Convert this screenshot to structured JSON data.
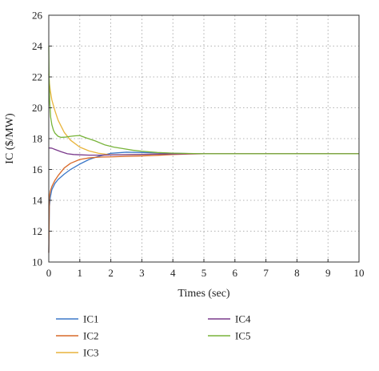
{
  "chart_data": {
    "type": "line",
    "xlabel": "Times (sec)",
    "ylabel": "IC ($/MW)",
    "xlim": [
      0,
      10
    ],
    "ylim": [
      10,
      26
    ],
    "xticks": [
      0,
      1,
      2,
      3,
      4,
      5,
      6,
      7,
      8,
      9,
      10
    ],
    "yticks": [
      10,
      12,
      14,
      16,
      18,
      20,
      22,
      24,
      26
    ],
    "grid": true,
    "legend_position": "bottom",
    "series": [
      {
        "name": "IC1",
        "color": "#3c78c8",
        "x": [
          0,
          0.02,
          0.05,
          0.1,
          0.2,
          0.3,
          0.5,
          0.7,
          1.0,
          1.3,
          1.6,
          2.0,
          2.5,
          3.0,
          3.5,
          4.0,
          4.5,
          5.0,
          6.0,
          7.0,
          8.0,
          9.0,
          10.0
        ],
        "y": [
          10.6,
          13.6,
          14.2,
          14.7,
          15.1,
          15.35,
          15.7,
          16.0,
          16.35,
          16.65,
          16.85,
          17.05,
          17.12,
          17.1,
          17.08,
          17.05,
          17.03,
          17.02,
          17.02,
          17.02,
          17.02,
          17.02,
          17.02
        ]
      },
      {
        "name": "IC2",
        "color": "#d86a2a",
        "x": [
          0,
          0.02,
          0.05,
          0.1,
          0.2,
          0.3,
          0.5,
          0.7,
          1.0,
          1.3,
          1.6,
          2.0,
          2.5,
          3.0,
          3.5,
          4.0,
          4.5,
          5.0,
          6.0,
          7.0,
          8.0,
          9.0,
          10.0
        ],
        "y": [
          10.6,
          14.2,
          14.6,
          14.9,
          15.3,
          15.6,
          16.1,
          16.4,
          16.65,
          16.75,
          16.8,
          16.82,
          16.85,
          16.88,
          16.92,
          16.97,
          17.0,
          17.02,
          17.02,
          17.02,
          17.02,
          17.02,
          17.02
        ]
      },
      {
        "name": "IC3",
        "color": "#e8b43c",
        "x": [
          0,
          0.02,
          0.05,
          0.1,
          0.2,
          0.3,
          0.5,
          0.7,
          1.0,
          1.3,
          1.6,
          2.0,
          2.5,
          3.0,
          3.5,
          4.0,
          4.5,
          5.0,
          6.0,
          7.0,
          8.0,
          9.0,
          10.0
        ],
        "y": [
          22.2,
          21.6,
          21.1,
          20.5,
          19.8,
          19.2,
          18.4,
          17.9,
          17.45,
          17.2,
          17.05,
          16.95,
          16.95,
          16.97,
          17.0,
          17.01,
          17.02,
          17.02,
          17.02,
          17.02,
          17.02,
          17.02,
          17.02
        ]
      },
      {
        "name": "IC4",
        "color": "#7a3a8c",
        "x": [
          0,
          0.1,
          0.2,
          0.4,
          0.6,
          0.8,
          1.0,
          1.3,
          1.6,
          2.0,
          2.5,
          3.0,
          3.5,
          4.0,
          4.5,
          5.0,
          6.0,
          7.0,
          8.0,
          9.0,
          10.0
        ],
        "y": [
          17.4,
          17.38,
          17.3,
          17.15,
          17.02,
          16.97,
          16.95,
          16.93,
          16.93,
          16.94,
          16.96,
          16.98,
          17.0,
          17.01,
          17.02,
          17.02,
          17.02,
          17.02,
          17.02,
          17.02,
          17.02
        ]
      },
      {
        "name": "IC5",
        "color": "#78b43a",
        "x": [
          0,
          0.01,
          0.03,
          0.06,
          0.1,
          0.15,
          0.2,
          0.3,
          0.4,
          0.55,
          0.7,
          0.85,
          1.0,
          1.2,
          1.5,
          1.8,
          2.1,
          2.4,
          2.7,
          3.0,
          3.5,
          4.0,
          4.5,
          5.0,
          6.0,
          7.0,
          8.0,
          9.0,
          10.0
        ],
        "y": [
          24.0,
          22.0,
          20.4,
          19.4,
          18.9,
          18.55,
          18.35,
          18.15,
          18.08,
          18.1,
          18.15,
          18.18,
          18.2,
          18.05,
          17.85,
          17.6,
          17.45,
          17.35,
          17.25,
          17.18,
          17.1,
          17.06,
          17.04,
          17.02,
          17.02,
          17.02,
          17.02,
          17.02,
          17.02
        ]
      }
    ]
  }
}
